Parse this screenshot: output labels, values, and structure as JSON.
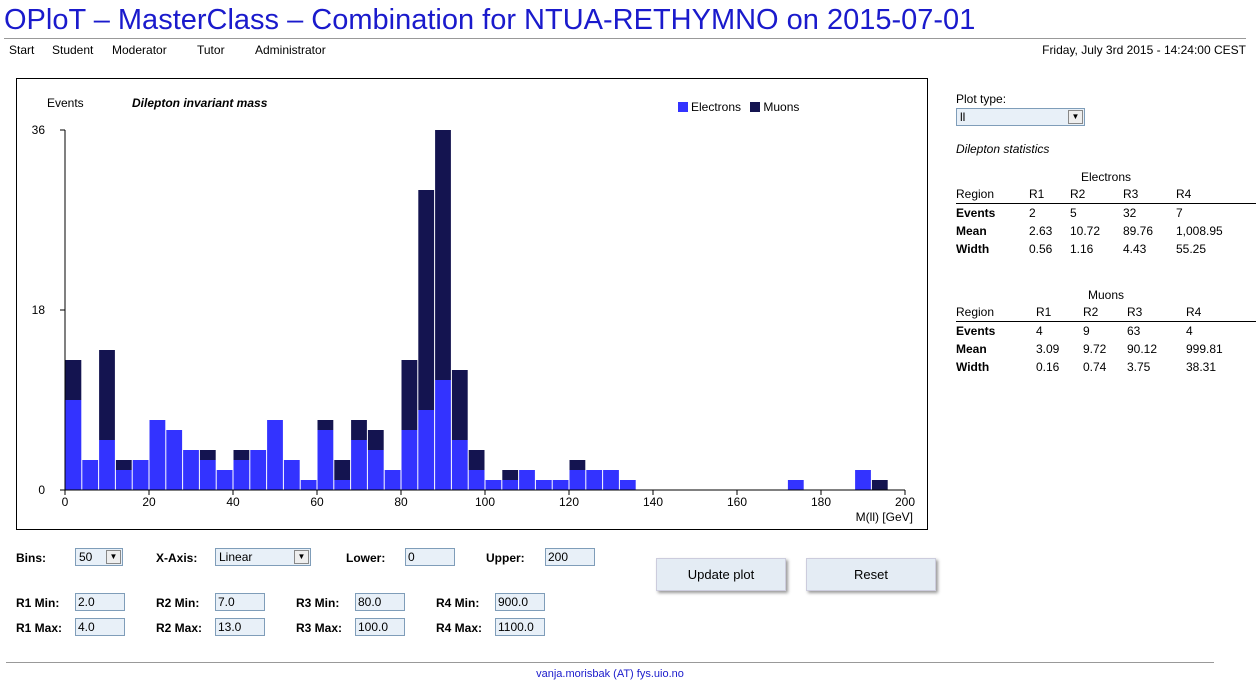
{
  "page": {
    "title": "OPloT – MasterClass – Combination for NTUA-RETHYMNO on 2015-07-01",
    "date": "Friday, July 3rd 2015 - 14:24:00 CEST",
    "footer": "vanja.morisbak (AT) fys.uio.no"
  },
  "nav": [
    "Start",
    "Student",
    "Moderator",
    "Tutor",
    "Administrator"
  ],
  "plot": {
    "ylabel": "Events",
    "title": "Dilepton invariant mass",
    "xlabel": "M(ll) [GeV]",
    "legend": [
      "Electrons",
      "Muons"
    ]
  },
  "chart_data": {
    "type": "bar",
    "stacked": true,
    "title": "Dilepton invariant mass",
    "xlabel": "M(ll) [GeV]",
    "ylabel": "Events",
    "xlim": [
      0,
      200
    ],
    "ylim": [
      0,
      36
    ],
    "xticks": [
      0,
      20,
      40,
      60,
      80,
      100,
      120,
      140,
      160,
      180,
      200
    ],
    "yticks": [
      0,
      18,
      36
    ],
    "bin_width": 4,
    "bin_starts": [
      0,
      4,
      8,
      12,
      16,
      20,
      24,
      28,
      32,
      36,
      40,
      44,
      48,
      52,
      56,
      60,
      64,
      68,
      72,
      76,
      80,
      84,
      88,
      92,
      96,
      100,
      104,
      108,
      112,
      116,
      120,
      124,
      128,
      132,
      136,
      140,
      144,
      148,
      152,
      156,
      160,
      164,
      168,
      172,
      176,
      180,
      184,
      188,
      192,
      196
    ],
    "series": [
      {
        "name": "Electrons",
        "color": "#3333ff",
        "values": [
          9,
          3,
          5,
          2,
          3,
          7,
          6,
          4,
          3,
          2,
          3,
          4,
          7,
          3,
          1,
          6,
          1,
          5,
          4,
          2,
          6,
          8,
          11,
          5,
          2,
          1,
          1,
          2,
          1,
          1,
          2,
          2,
          2,
          1,
          0,
          0,
          0,
          0,
          0,
          0,
          0,
          0,
          0,
          1,
          0,
          0,
          0,
          2,
          0,
          0
        ]
      },
      {
        "name": "Muons",
        "color": "#141450",
        "values": [
          4,
          0,
          9,
          1,
          0,
          0,
          0,
          0,
          1,
          0,
          1,
          0,
          0,
          0,
          0,
          1,
          2,
          2,
          2,
          0,
          7,
          22,
          25,
          7,
          2,
          0,
          1,
          0,
          0,
          0,
          1,
          0,
          0,
          0,
          0,
          0,
          0,
          0,
          0,
          0,
          0,
          0,
          0,
          0,
          0,
          0,
          0,
          0,
          1,
          0
        ]
      }
    ],
    "legend_position": "top-right",
    "grid": false
  },
  "side": {
    "plot_type_label": "Plot type:",
    "plot_type_value": "ll",
    "stats_title": "Dilepton statistics",
    "electrons": {
      "caption": "Electrons",
      "header": [
        "Region",
        "R1",
        "R2",
        "R3",
        "R4"
      ],
      "rows": [
        [
          "Events",
          "2",
          "5",
          "32",
          "7"
        ],
        [
          "Mean",
          "2.63",
          "10.72",
          "89.76",
          "1,008.95"
        ],
        [
          "Width",
          "0.56",
          "1.16",
          "4.43",
          "55.25"
        ]
      ]
    },
    "muons": {
      "caption": "Muons",
      "header": [
        "Region",
        "R1",
        "R2",
        "R3",
        "R4"
      ],
      "rows": [
        [
          "Events",
          "4",
          "9",
          "63",
          "4"
        ],
        [
          "Mean",
          "3.09",
          "9.72",
          "90.12",
          "999.81"
        ],
        [
          "Width",
          "0.16",
          "0.74",
          "3.75",
          "38.31"
        ]
      ]
    }
  },
  "controls": {
    "bins_label": "Bins:",
    "bins_value": "50",
    "xaxis_label": "X-Axis:",
    "xaxis_value": "Linear",
    "lower_label": "Lower:",
    "lower_value": "0",
    "upper_label": "Upper:",
    "upper_value": "200",
    "r1min_label": "R1 Min:",
    "r1min_value": "2.0",
    "r1max_label": "R1 Max:",
    "r1max_value": "4.0",
    "r2min_label": "R2 Min:",
    "r2min_value": "7.0",
    "r2max_label": "R2 Max:",
    "r2max_value": "13.0",
    "r3min_label": "R3 Min:",
    "r3min_value": "80.0",
    "r3max_label": "R3 Max:",
    "r3max_value": "100.0",
    "r4min_label": "R4 Min:",
    "r4min_value": "900.0",
    "r4max_label": "R4 Max:",
    "r4max_value": "1100.0",
    "update_label": "Update plot",
    "reset_label": "Reset"
  }
}
